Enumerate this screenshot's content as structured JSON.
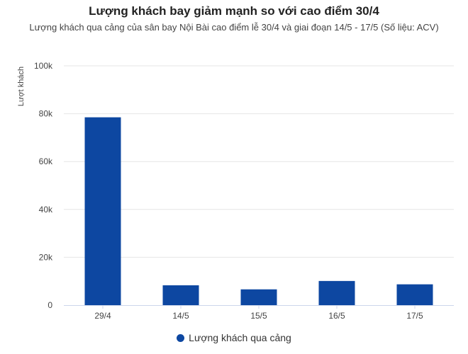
{
  "chart_data": {
    "type": "bar",
    "title": "Lượng khách bay giảm mạnh so với cao điểm 30/4",
    "subtitle": "Lượng khách qua cảng của sân bay Nội Bài cao điểm lễ 30/4 và giai đoạn 14/5 - 17/5 (Số liệu: ACV)",
    "ylabel": "Lượt khách",
    "xlabel": "",
    "ylim": [
      0,
      100000
    ],
    "yticks": [
      {
        "value": 0,
        "label": "0"
      },
      {
        "value": 20000,
        "label": "20k"
      },
      {
        "value": 40000,
        "label": "40k"
      },
      {
        "value": 60000,
        "label": "60k"
      },
      {
        "value": 80000,
        "label": "80k"
      },
      {
        "value": 100000,
        "label": "100k"
      }
    ],
    "categories": [
      "29/4",
      "14/5",
      "15/5",
      "16/5",
      "17/5"
    ],
    "series": [
      {
        "name": "Lượng khách qua cảng",
        "color": "#0d47a1",
        "values": [
          78500,
          8300,
          6600,
          10100,
          8700
        ]
      }
    ],
    "grid": true,
    "legend_position": "bottom-center"
  }
}
